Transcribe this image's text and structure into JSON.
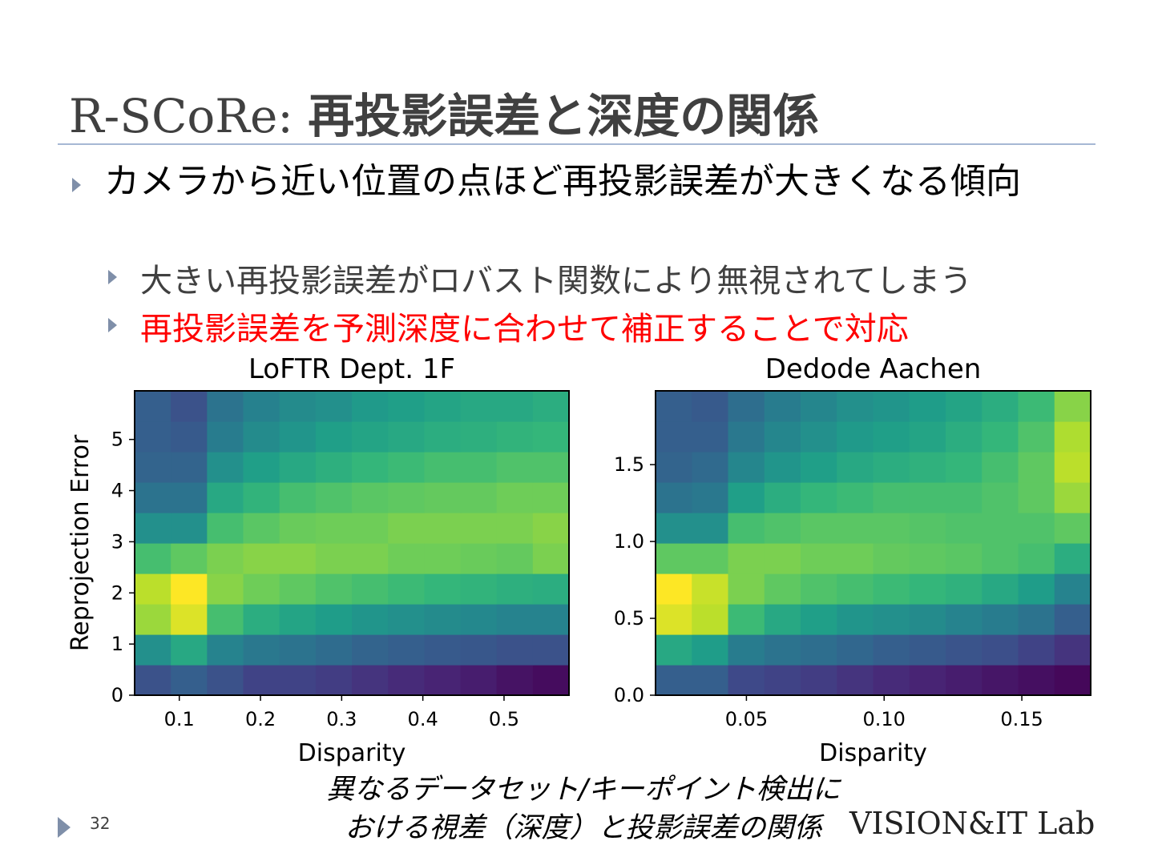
{
  "title": {
    "prefix": "R-SCoRe:",
    "main": "再投影誤差と深度の関係"
  },
  "bullets": [
    {
      "text": "カメラから近い位置の点ほど再投影誤差が大きくなる傾向",
      "sub_bullets": [
        {
          "text": "大きい再投影誤差がロバスト関数により無視されてしまう",
          "color": "#404040"
        },
        {
          "text": "再投影誤差を予測深度に合わせて補正することで対応",
          "color": "#ff0000"
        }
      ]
    }
  ],
  "chart_data": [
    {
      "type": "heatmap",
      "title": "LoFTR Dept. 1F",
      "x_label": "Disparity",
      "y_label": "Reprojection Error",
      "xlim": [
        0.045,
        0.58
      ],
      "ylim": [
        0,
        5.95
      ],
      "xticks": [
        0.1,
        0.2,
        0.3,
        0.4,
        0.5
      ],
      "yticks": [
        0,
        1,
        2,
        3,
        4,
        5
      ],
      "colormap": "viridis",
      "zlim": [
        0,
        1
      ],
      "z": [
        [
          0.25,
          0.3,
          0.25,
          0.2,
          0.2,
          0.18,
          0.15,
          0.12,
          0.1,
          0.08,
          0.05,
          0.03
        ],
        [
          0.5,
          0.6,
          0.45,
          0.4,
          0.38,
          0.35,
          0.32,
          0.3,
          0.28,
          0.27,
          0.25,
          0.25
        ],
        [
          0.85,
          0.95,
          0.7,
          0.62,
          0.58,
          0.55,
          0.52,
          0.5,
          0.48,
          0.47,
          0.45,
          0.45
        ],
        [
          0.9,
          1.0,
          0.82,
          0.78,
          0.75,
          0.72,
          0.7,
          0.68,
          0.66,
          0.65,
          0.63,
          0.62
        ],
        [
          0.7,
          0.75,
          0.8,
          0.82,
          0.82,
          0.8,
          0.8,
          0.78,
          0.78,
          0.77,
          0.76,
          0.8
        ],
        [
          0.5,
          0.5,
          0.7,
          0.74,
          0.77,
          0.78,
          0.78,
          0.8,
          0.8,
          0.8,
          0.8,
          0.82
        ],
        [
          0.38,
          0.38,
          0.6,
          0.65,
          0.7,
          0.72,
          0.74,
          0.75,
          0.76,
          0.76,
          0.78,
          0.78
        ],
        [
          0.32,
          0.32,
          0.5,
          0.56,
          0.6,
          0.63,
          0.66,
          0.68,
          0.7,
          0.7,
          0.72,
          0.72
        ],
        [
          0.3,
          0.28,
          0.42,
          0.48,
          0.52,
          0.56,
          0.58,
          0.6,
          0.62,
          0.63,
          0.65,
          0.66
        ],
        [
          0.3,
          0.25,
          0.38,
          0.44,
          0.48,
          0.5,
          0.54,
          0.56,
          0.58,
          0.6,
          0.6,
          0.62
        ]
      ]
    },
    {
      "type": "heatmap",
      "title": "Dedode Aachen",
      "x_label": "Disparity",
      "xlim": [
        0.017,
        0.175
      ],
      "ylim": [
        0,
        1.98
      ],
      "xticks": [
        0.05,
        {
          "value": 0.1,
          "label": "0.10"
        },
        0.15
      ],
      "yticks": [
        {
          "value": 0,
          "label": "0.0"
        },
        0.5,
        {
          "value": 1,
          "label": "1.0"
        },
        1.5
      ],
      "colormap": "viridis",
      "zlim": [
        0,
        1
      ],
      "z": [
        [
          0.3,
          0.3,
          0.22,
          0.2,
          0.18,
          0.15,
          0.12,
          0.1,
          0.08,
          0.06,
          0.04,
          0.02
        ],
        [
          0.6,
          0.55,
          0.42,
          0.38,
          0.36,
          0.33,
          0.3,
          0.28,
          0.26,
          0.24,
          0.2,
          0.15
        ],
        [
          0.95,
          0.9,
          0.68,
          0.6,
          0.56,
          0.52,
          0.5,
          0.48,
          0.45,
          0.42,
          0.38,
          0.3
        ],
        [
          1.0,
          0.92,
          0.8,
          0.75,
          0.72,
          0.7,
          0.68,
          0.66,
          0.64,
          0.6,
          0.55,
          0.45
        ],
        [
          0.75,
          0.75,
          0.8,
          0.8,
          0.78,
          0.78,
          0.76,
          0.75,
          0.74,
          0.72,
          0.7,
          0.62
        ],
        [
          0.5,
          0.5,
          0.7,
          0.72,
          0.74,
          0.74,
          0.74,
          0.73,
          0.72,
          0.72,
          0.72,
          0.75
        ],
        [
          0.38,
          0.4,
          0.56,
          0.62,
          0.66,
          0.68,
          0.7,
          0.7,
          0.7,
          0.72,
          0.75,
          0.85
        ],
        [
          0.32,
          0.34,
          0.46,
          0.52,
          0.56,
          0.6,
          0.62,
          0.64,
          0.66,
          0.7,
          0.75,
          0.9
        ],
        [
          0.3,
          0.3,
          0.4,
          0.46,
          0.5,
          0.54,
          0.56,
          0.58,
          0.62,
          0.66,
          0.72,
          0.88
        ],
        [
          0.3,
          0.28,
          0.36,
          0.42,
          0.46,
          0.5,
          0.52,
          0.55,
          0.58,
          0.62,
          0.68,
          0.82
        ]
      ]
    }
  ],
  "caption": [
    "異なるデータセット/キーポイント検出に",
    "おける視差（深度）と投影誤差の関係"
  ],
  "page_number": "32",
  "logo": "VISION&IT Lab"
}
